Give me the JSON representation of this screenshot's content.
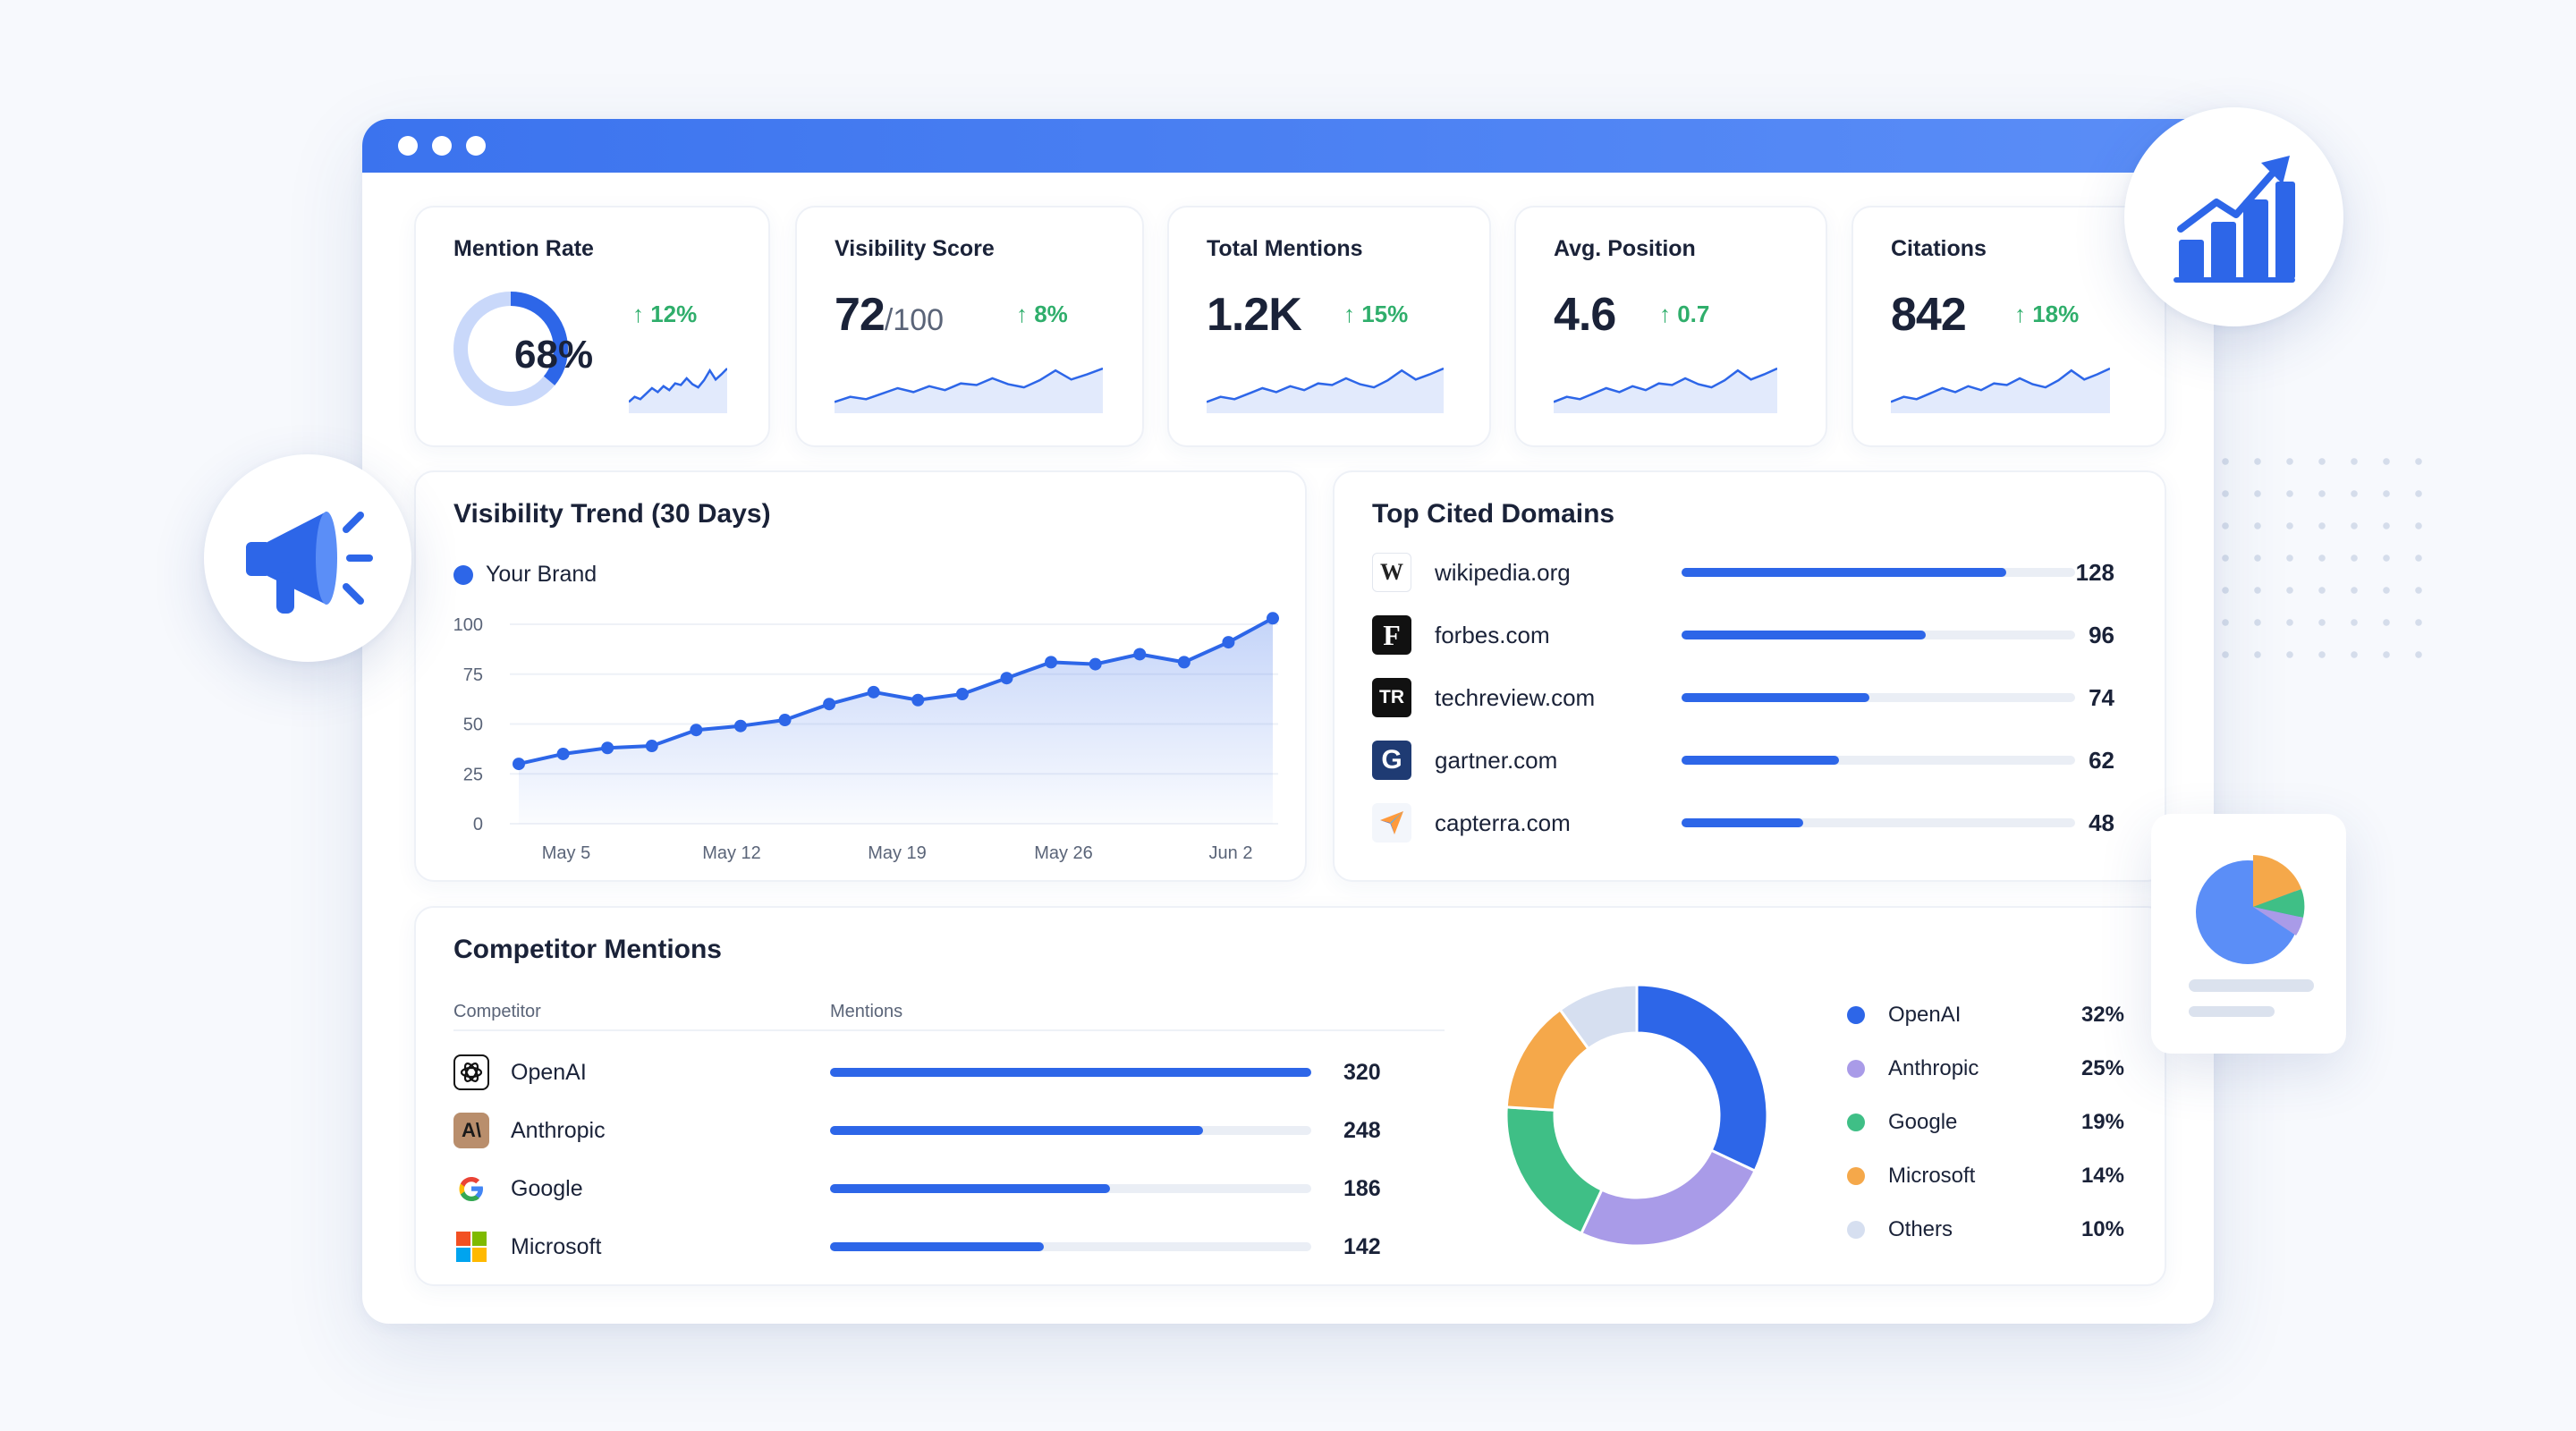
{
  "kpis": [
    {
      "title": "Mention Rate",
      "value": "68%",
      "suffix": "",
      "change": "↑ 12%",
      "gauge": 0.68
    },
    {
      "title": "Visibility Score",
      "value": "72",
      "suffix": "/100",
      "change": "↑ 8%"
    },
    {
      "title": "Total Mentions",
      "value": "1.2K",
      "suffix": "",
      "change": "↑ 15%"
    },
    {
      "title": "Avg. Position",
      "value": "4.6",
      "suffix": "",
      "change": "↑ 0.7"
    },
    {
      "title": "Citations",
      "value": "842",
      "suffix": "",
      "change": "↑ 18%"
    }
  ],
  "trend": {
    "title": "Visibility Trend (30 Days)",
    "legend": "Your Brand"
  },
  "domains": {
    "title": "Top Cited Domains",
    "max": 155,
    "items": [
      {
        "name": "wikipedia.org",
        "count": 128,
        "icon": "W"
      },
      {
        "name": "forbes.com",
        "count": 96,
        "icon": "F"
      },
      {
        "name": "techreview.com",
        "count": 74,
        "icon": "TR"
      },
      {
        "name": "gartner.com",
        "count": 62,
        "icon": "G"
      },
      {
        "name": "capterra.com",
        "count": 48,
        "icon": "arrow-icon"
      }
    ]
  },
  "competitors": {
    "title": "Competitor Mentions",
    "col_competitor": "Competitor",
    "col_mentions": "Mentions",
    "max": 320,
    "items": [
      {
        "name": "OpenAI",
        "count": 320,
        "icon": "openai-icon"
      },
      {
        "name": "Anthropic",
        "count": 248,
        "icon": "anthropic-icon"
      },
      {
        "name": "Google",
        "count": 186,
        "icon": "google-icon"
      },
      {
        "name": "Microsoft",
        "count": 142,
        "icon": "microsoft-icon"
      }
    ],
    "share": [
      {
        "name": "OpenAI",
        "pct": "32%",
        "value": 32,
        "color": "#2d66e8"
      },
      {
        "name": "Anthropic",
        "pct": "25%",
        "value": 25,
        "color": "#a99be8"
      },
      {
        "name": "Google",
        "pct": "19%",
        "value": 19,
        "color": "#3fbf86"
      },
      {
        "name": "Microsoft",
        "pct": "14%",
        "value": 14,
        "color": "#f5a84a"
      },
      {
        "name": "Others",
        "pct": "10%",
        "value": 10,
        "color": "#d6dff0"
      }
    ]
  },
  "colors": {
    "accent": "#2d66e8",
    "positive": "#2fae6b"
  },
  "chart_data": {
    "type": "line",
    "title": "Visibility Trend (30 Days)",
    "series": [
      {
        "name": "Your Brand",
        "values": [
          30,
          35,
          38,
          39,
          47,
          49,
          52,
          60,
          66,
          62,
          65,
          73,
          81,
          80,
          85,
          81,
          91,
          103
        ]
      }
    ],
    "x_ticks": [
      "May 5",
      "May 12",
      "May 19",
      "May 26",
      "Jun 2"
    ],
    "y_ticks": [
      "100",
      "75",
      "50",
      "25",
      "0"
    ],
    "ylim": [
      0,
      100
    ],
    "grid": true
  }
}
